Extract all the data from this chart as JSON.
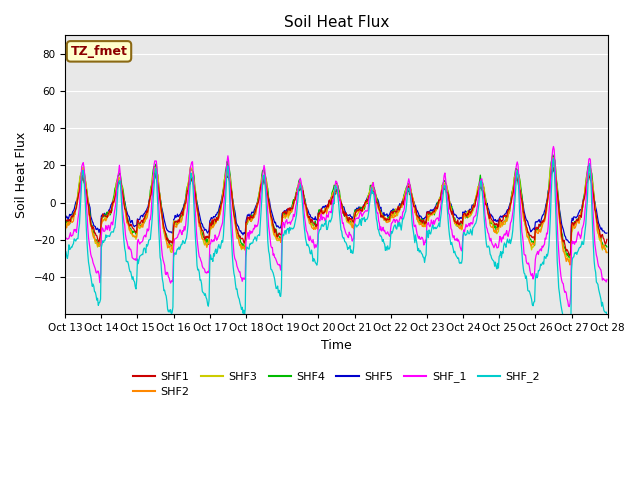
{
  "title": "Soil Heat Flux",
  "xlabel": "Time",
  "ylabel": "Soil Heat Flux",
  "ylim": [
    -60,
    90
  ],
  "yticks": [
    -40,
    -20,
    0,
    20,
    40,
    60,
    80
  ],
  "xtick_labels": [
    "Oct 13",
    "Oct 14",
    "Oct 15",
    "Oct 16",
    "Oct 17",
    "Oct 18",
    "Oct 19",
    "Oct 20",
    "Oct 21",
    "Oct 22",
    "Oct 23",
    "Oct 24",
    "Oct 25",
    "Oct 26",
    "Oct 27",
    "Oct 28"
  ],
  "annotation_text": "TZ_fmet",
  "annotation_bg": "#ffffcc",
  "annotation_border": "#8B6914",
  "annotation_text_color": "#8B0000",
  "plot_bg": "#e8e8e8",
  "series_colors": {
    "SHF1": "#cc0000",
    "SHF2": "#ff8800",
    "SHF3": "#cccc00",
    "SHF4": "#00bb00",
    "SHF5": "#0000cc",
    "SHF_1": "#ff00ff",
    "SHF_2": "#00cccc"
  },
  "n_days": 15,
  "pts_per_day": 48
}
